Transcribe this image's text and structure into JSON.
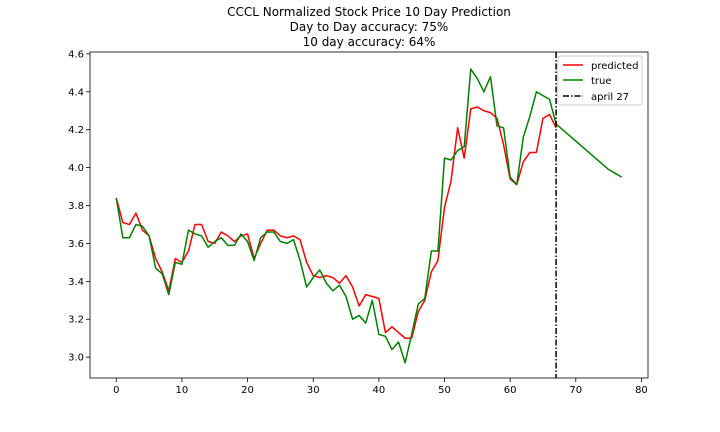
{
  "chart_data": {
    "type": "line",
    "title": "CCCL Normalized Stock Price 10 Day Prediction",
    "subtitle_lines": [
      "Day to Day accuracy: 75%",
      "10 day accuracy: 64%"
    ],
    "xlabel": "",
    "ylabel": "",
    "xlim": [
      -4,
      81
    ],
    "ylim": [
      2.89,
      4.61
    ],
    "x_ticks": [
      0,
      10,
      20,
      30,
      40,
      50,
      60,
      70,
      80
    ],
    "y_ticks": [
      3.0,
      3.2,
      3.4,
      3.6,
      3.8,
      4.0,
      4.2,
      4.4,
      4.6
    ],
    "legend_position": "top-right",
    "series": [
      {
        "name": "predicted",
        "color": "#ff0000",
        "x": [
          0,
          1,
          2,
          3,
          4,
          5,
          6,
          7,
          8,
          9,
          10,
          11,
          12,
          13,
          14,
          15,
          16,
          17,
          18,
          19,
          20,
          21,
          22,
          23,
          24,
          25,
          26,
          27,
          28,
          29,
          30,
          31,
          32,
          33,
          34,
          35,
          36,
          37,
          38,
          39,
          40,
          41,
          42,
          43,
          44,
          45,
          46,
          47,
          48,
          49,
          50,
          51,
          52,
          53,
          54,
          55,
          56,
          57,
          58,
          59,
          60,
          61,
          62,
          63,
          64,
          65,
          66,
          67
        ],
        "values": [
          3.84,
          3.71,
          3.7,
          3.76,
          3.67,
          3.64,
          3.52,
          3.45,
          3.35,
          3.52,
          3.5,
          3.56,
          3.7,
          3.7,
          3.61,
          3.6,
          3.66,
          3.64,
          3.61,
          3.64,
          3.65,
          3.52,
          3.6,
          3.67,
          3.67,
          3.64,
          3.63,
          3.64,
          3.62,
          3.5,
          3.43,
          3.42,
          3.43,
          3.42,
          3.39,
          3.43,
          3.37,
          3.27,
          3.33,
          3.32,
          3.31,
          3.13,
          3.16,
          3.13,
          3.1,
          3.1,
          3.24,
          3.3,
          3.45,
          3.51,
          3.79,
          3.93,
          4.21,
          4.05,
          4.31,
          4.32,
          4.3,
          4.29,
          4.26,
          4.12,
          3.94,
          3.91,
          4.03,
          4.08,
          4.08,
          4.26,
          4.28,
          4.21
        ]
      },
      {
        "name": "true",
        "color": "#008000",
        "x": [
          0,
          1,
          2,
          3,
          4,
          5,
          6,
          7,
          8,
          9,
          10,
          11,
          12,
          13,
          14,
          15,
          16,
          17,
          18,
          19,
          20,
          21,
          22,
          23,
          24,
          25,
          26,
          27,
          28,
          29,
          30,
          31,
          32,
          33,
          34,
          35,
          36,
          37,
          38,
          39,
          40,
          41,
          42,
          43,
          44,
          45,
          46,
          47,
          48,
          49,
          50,
          51,
          52,
          53,
          54,
          55,
          56,
          57,
          58,
          59,
          60,
          61,
          62,
          63,
          64,
          65,
          66,
          67,
          68,
          69,
          70,
          71,
          72,
          73,
          74,
          75,
          76,
          77
        ],
        "values": [
          3.84,
          3.63,
          3.63,
          3.7,
          3.69,
          3.64,
          3.47,
          3.44,
          3.33,
          3.5,
          3.49,
          3.67,
          3.65,
          3.64,
          3.58,
          3.61,
          3.63,
          3.59,
          3.59,
          3.65,
          3.61,
          3.51,
          3.63,
          3.66,
          3.66,
          3.61,
          3.6,
          3.62,
          3.51,
          3.37,
          3.42,
          3.46,
          3.39,
          3.35,
          3.38,
          3.32,
          3.2,
          3.22,
          3.18,
          3.3,
          3.12,
          3.11,
          3.04,
          3.08,
          2.97,
          3.12,
          3.28,
          3.31,
          3.56,
          3.56,
          4.05,
          4.04,
          4.09,
          4.11,
          4.52,
          4.47,
          4.4,
          4.48,
          4.22,
          4.21,
          3.95,
          3.91,
          4.16,
          4.27,
          4.4,
          4.38,
          4.36,
          4.23,
          4.2,
          4.17,
          4.14,
          4.11,
          4.08,
          4.05,
          4.02,
          3.99,
          3.97,
          3.95
        ]
      }
    ],
    "vline": {
      "name": "april 27",
      "x": 67,
      "color": "#000000",
      "style": "dash-dot"
    }
  }
}
